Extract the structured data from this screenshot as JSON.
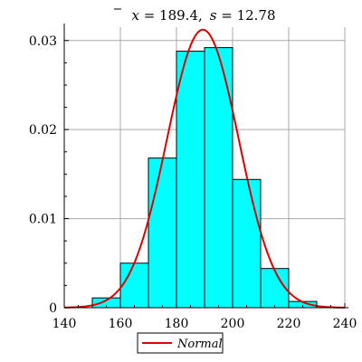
{
  "chart_data": {
    "type": "bar",
    "title": {
      "mean_symbol": "x",
      "mean_value": " = 189.4,",
      "sd_symbol": "s",
      "sd_value": " = 12.78"
    },
    "xlabel": "",
    "ylabel": "",
    "xlim": [
      140,
      240
    ],
    "ylim": [
      0,
      0.0315
    ],
    "x_ticks": [
      140,
      160,
      180,
      200,
      220,
      240
    ],
    "x_tick_labels": [
      "140",
      "160",
      "180",
      "200",
      "220",
      "240"
    ],
    "y_ticks": [
      0,
      0.01,
      0.02,
      0.03
    ],
    "y_tick_labels": [
      "0",
      "0.01",
      "0.02",
      "0.03"
    ],
    "grid": true,
    "bars": [
      {
        "x0": 150,
        "x1": 160,
        "value": 0.0011
      },
      {
        "x0": 160,
        "x1": 170,
        "value": 0.005
      },
      {
        "x0": 170,
        "x1": 180,
        "value": 0.0168
      },
      {
        "x0": 180,
        "x1": 190,
        "value": 0.0288
      },
      {
        "x0": 190,
        "x1": 200,
        "value": 0.0292
      },
      {
        "x0": 200,
        "x1": 210,
        "value": 0.0144
      },
      {
        "x0": 210,
        "x1": 220,
        "value": 0.0044
      },
      {
        "x0": 220,
        "x1": 230,
        "value": 0.0007
      }
    ],
    "curve": {
      "name": "Normal",
      "mean": 189.4,
      "sd": 12.78,
      "x_range": [
        140,
        240
      ]
    },
    "bar_color": "#00ffff",
    "curve_color": "#e00000",
    "legend": {
      "placement": "bottom",
      "entries": [
        "Normal"
      ]
    }
  }
}
